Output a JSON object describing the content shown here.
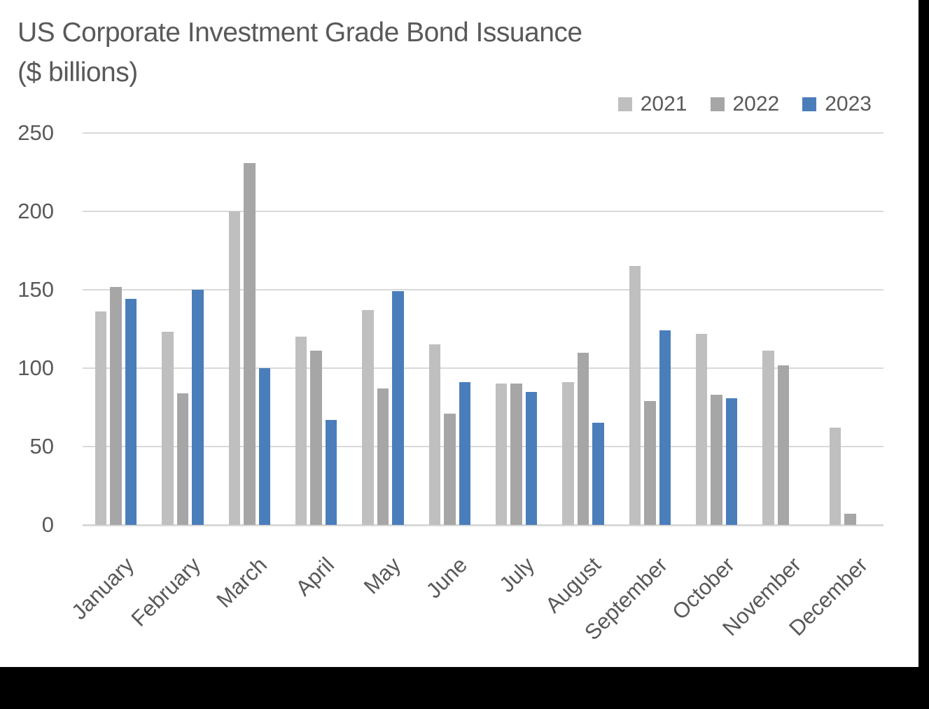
{
  "title": {
    "line1": "US Corporate Investment Grade Bond Issuance",
    "line2": "($ billions)"
  },
  "legend": {
    "items": [
      {
        "label": "2021",
        "color": "#bfbfbf"
      },
      {
        "label": "2022",
        "color": "#a6a6a6"
      },
      {
        "label": "2023",
        "color": "#4a7eba"
      }
    ]
  },
  "colors": {
    "series_2021": "#bfbfbf",
    "series_2022": "#a6a6a6",
    "series_2023": "#4a7eba",
    "gridline": "#d9d9d9",
    "text": "#595959",
    "background": "#ffffff",
    "border_bands": "#000000"
  },
  "chart_data": {
    "type": "bar",
    "title": "US Corporate Investment Grade Bond Issuance ($ billions)",
    "xlabel": "",
    "ylabel": "",
    "categories": [
      "January",
      "February",
      "March",
      "April",
      "May",
      "June",
      "July",
      "August",
      "September",
      "October",
      "November",
      "December"
    ],
    "series": [
      {
        "name": "2021",
        "color": "#bfbfbf",
        "values": [
          136,
          123,
          200,
          120,
          137,
          115,
          90,
          91,
          165,
          122,
          111,
          62
        ]
      },
      {
        "name": "2022",
        "color": "#a6a6a6",
        "values": [
          152,
          84,
          231,
          111,
          87,
          71,
          90,
          110,
          79,
          83,
          102,
          7
        ]
      },
      {
        "name": "2023",
        "color": "#4a7eba",
        "values": [
          144,
          150,
          100,
          67,
          149,
          91,
          85,
          65,
          124,
          81,
          null,
          null
        ]
      }
    ],
    "ylim": [
      0,
      250
    ],
    "yticks": [
      0,
      50,
      100,
      150,
      200,
      250
    ],
    "grid": true,
    "legend_position": "top-right"
  }
}
